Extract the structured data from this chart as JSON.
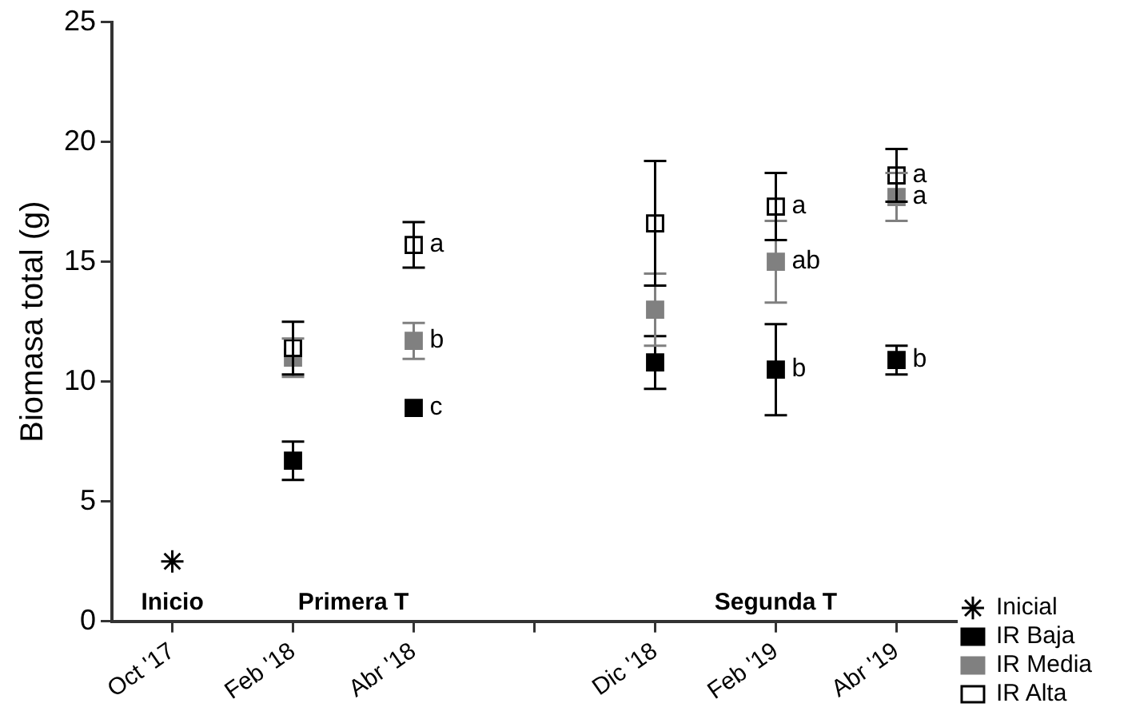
{
  "chart_data": {
    "type": "scatter",
    "ylabel": "Biomasa total (g)",
    "categories": [
      "Oct '17",
      "Feb '18",
      "Abr '18",
      null,
      "Dic '18",
      "Feb '19",
      "Abr '19"
    ],
    "ylim": [
      0,
      25
    ],
    "yticks": [
      0,
      5,
      10,
      15,
      20,
      25
    ],
    "grid": false,
    "legend": "right",
    "series": [
      {
        "name": "Inicial",
        "color": "#000000",
        "marker": "cross",
        "values": [
          2.5,
          null,
          null,
          null,
          null,
          null,
          null
        ]
      },
      {
        "name": "IR Baja",
        "color": "#000000",
        "marker": "square",
        "values": [
          null,
          6.7,
          8.9,
          null,
          10.8,
          10.5,
          10.9
        ],
        "errors": [
          null,
          0.8,
          null,
          null,
          1.1,
          1.9,
          0.6
        ]
      },
      {
        "name": "IR Media",
        "color": "#808080",
        "marker": "square",
        "values": [
          null,
          11.0,
          11.7,
          null,
          13.0,
          15.0,
          17.7
        ],
        "errors": [
          null,
          0.8,
          0.75,
          null,
          1.5,
          1.7,
          1.0
        ]
      },
      {
        "name": "IR Alta",
        "color": "#ffffff",
        "marker": "square",
        "values": [
          null,
          11.4,
          15.7,
          null,
          16.6,
          17.3,
          18.6
        ],
        "errors": [
          null,
          1.1,
          0.95,
          null,
          2.6,
          1.4,
          1.1
        ]
      }
    ],
    "annotations": [
      "Inicio",
      "Primera T",
      "Segunda T",
      {
        "text": "a",
        "x": "Abr '18",
        "y": 15.7
      },
      {
        "text": "b",
        "x": "Abr '18",
        "y": 11.7
      },
      {
        "text": "c",
        "x": "Abr '18",
        "y": 8.9
      },
      {
        "text": "a",
        "x": "Feb '19",
        "y": 17.3
      },
      {
        "text": "ab",
        "x": "Feb '19",
        "y": 15.0
      },
      {
        "text": "b",
        "x": "Feb '19",
        "y": 10.5
      },
      {
        "text": "a",
        "x": "Abr '19",
        "y": 18.6
      },
      {
        "text": "a",
        "x": "Abr '19",
        "y": 17.7
      },
      {
        "text": "b",
        "x": "Abr '19",
        "y": 10.9
      }
    ]
  }
}
